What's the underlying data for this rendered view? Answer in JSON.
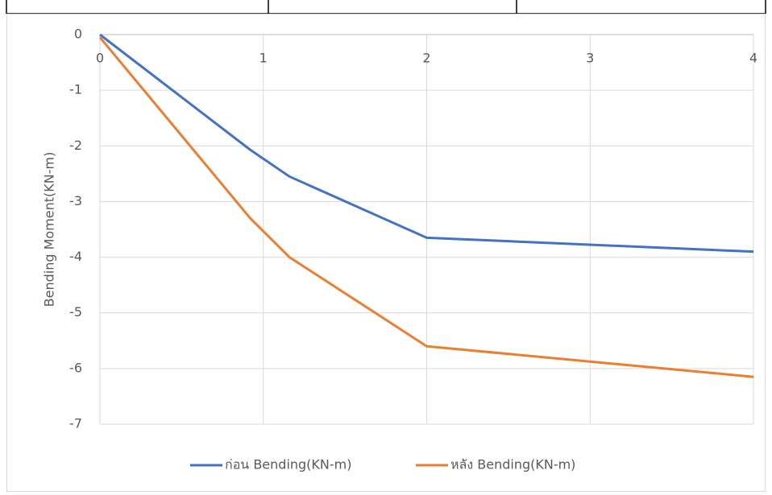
{
  "chart_data": {
    "type": "line",
    "y_label": "Bending Moment(KN-m)",
    "x": [
      0,
      0.92,
      1.16,
      2,
      4
    ],
    "series": [
      {
        "name": "ก่อน Bending(KN-m)",
        "color": "#4472c4",
        "values": [
          0,
          -2.07,
          -2.55,
          -3.65,
          -3.9
        ]
      },
      {
        "name": "หลัง Bending(KN-m)",
        "color": "#ed7d31",
        "values": [
          -0.05,
          -3.3,
          -4.0,
          -5.6,
          -6.15
        ]
      }
    ],
    "xlim": [
      0,
      4
    ],
    "xticks": [
      0,
      1,
      2,
      3,
      4
    ],
    "ylim": [
      -7,
      0
    ],
    "yticks": [
      0,
      -1,
      -2,
      -3,
      -4,
      -5,
      -6,
      -7
    ],
    "grid": true,
    "legend": "bottom"
  }
}
